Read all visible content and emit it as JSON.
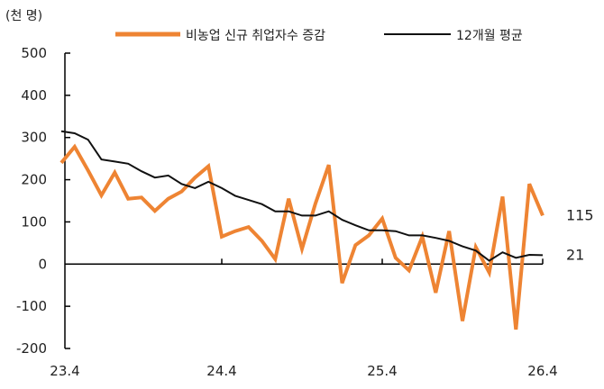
{
  "chart_data": {
    "type": "line",
    "unit_label": "(천 명)",
    "ylim": [
      -200,
      500
    ],
    "yticks": [
      500,
      400,
      300,
      200,
      100,
      0,
      -100,
      -200
    ],
    "xticks": [
      "23.4",
      "24.4",
      "25.4",
      "26.4"
    ],
    "x": [
      "2023-04",
      "2023-05",
      "2023-06",
      "2023-07",
      "2023-08",
      "2023-09",
      "2023-10",
      "2023-11",
      "2023-12",
      "2024-01",
      "2024-02",
      "2024-03",
      "2024-04",
      "2024-05",
      "2024-06",
      "2024-07",
      "2024-08",
      "2024-09",
      "2024-10",
      "2024-11",
      "2024-12",
      "2025-01",
      "2025-02",
      "2025-03",
      "2025-04",
      "2025-05",
      "2025-06",
      "2025-07",
      "2025-08",
      "2025-09",
      "2025-10",
      "2025-11",
      "2025-12",
      "2026-01",
      "2026-02",
      "2026-03",
      "2026-04"
    ],
    "series": [
      {
        "name": "비농업 신규 취업자수 증감",
        "color": "#ee8433",
        "values": [
          240,
          278,
          222,
          163,
          217,
          155,
          158,
          126,
          155,
          172,
          205,
          232,
          65,
          78,
          88,
          55,
          12,
          155,
          36,
          143,
          235,
          -45,
          45,
          68,
          108,
          15,
          -15,
          65,
          -68,
          78,
          -135,
          40,
          -20,
          160,
          -155,
          190,
          115
        ]
      },
      {
        "name": "12개월 평균",
        "color": "#111111",
        "values": [
          315,
          310,
          295,
          248,
          243,
          238,
          220,
          205,
          210,
          190,
          180,
          195,
          180,
          162,
          152,
          142,
          125,
          125,
          115,
          115,
          125,
          105,
          92,
          80,
          80,
          78,
          68,
          68,
          62,
          55,
          42,
          32,
          8,
          28,
          15,
          22,
          21
        ]
      }
    ],
    "end_labels": [
      "115",
      "21"
    ],
    "grid": false,
    "legend": "top"
  }
}
